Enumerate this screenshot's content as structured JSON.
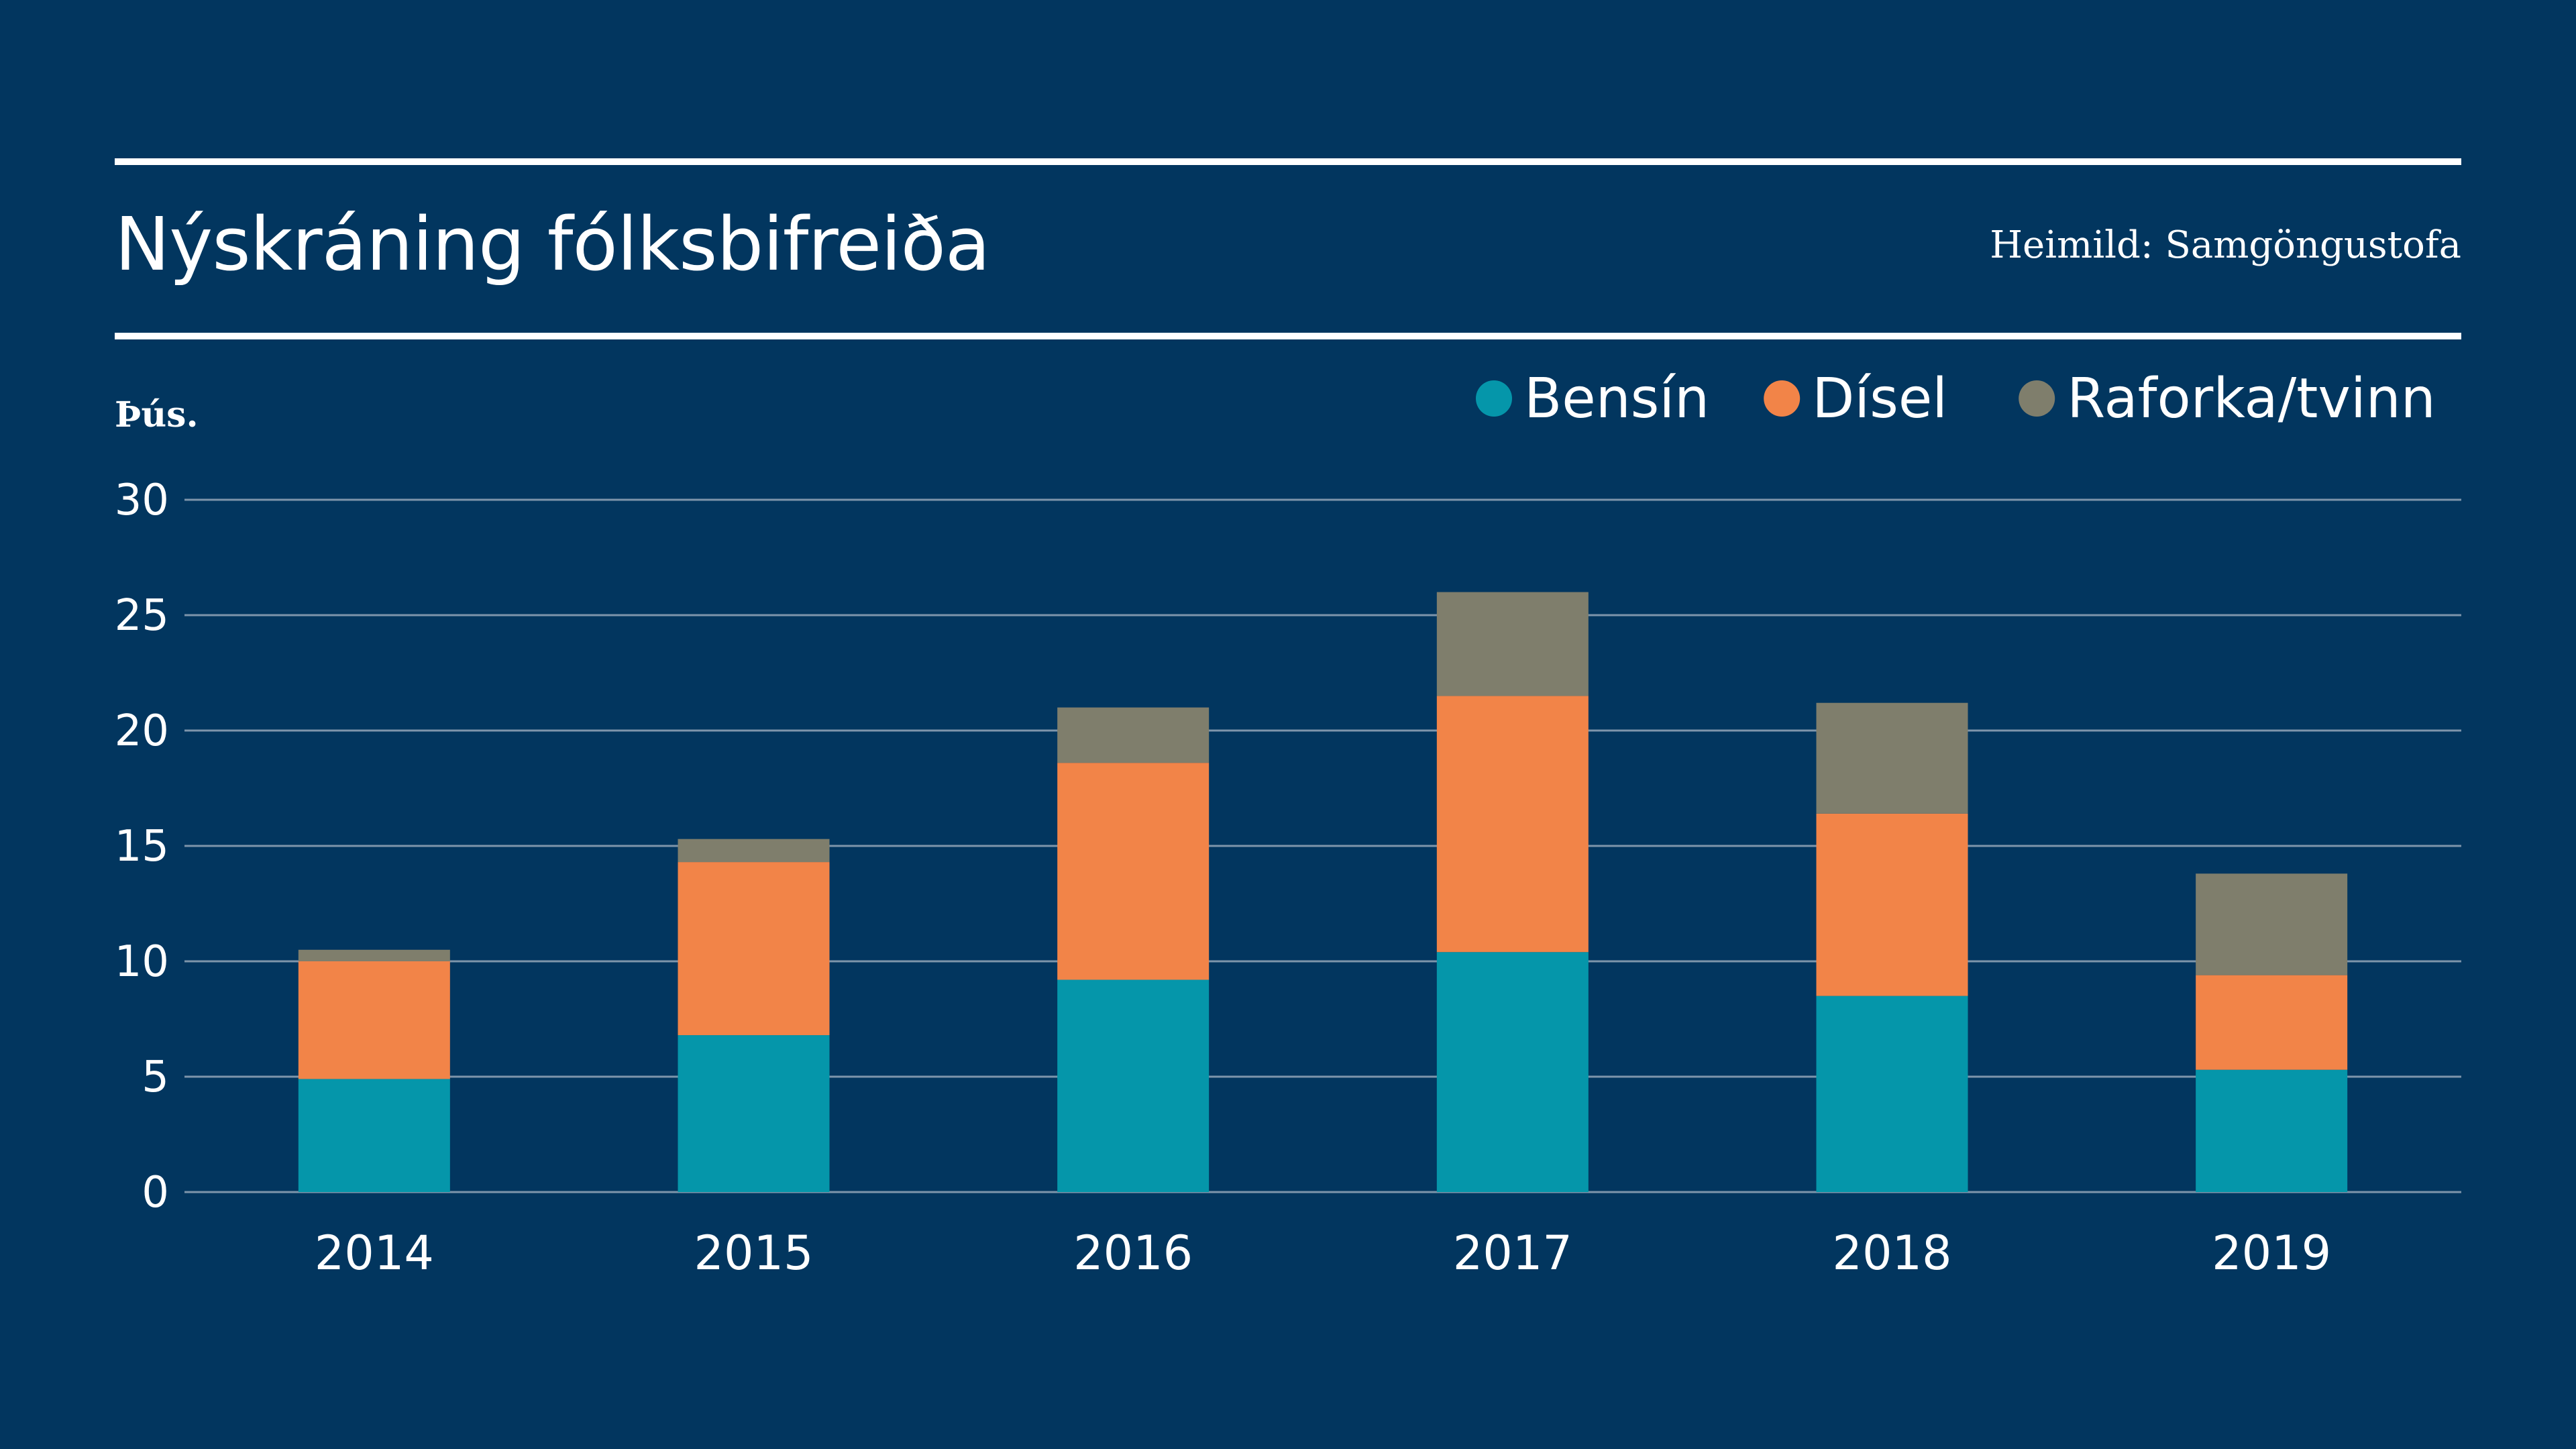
{
  "header": {
    "title": "Nýskráning fólksbifreiða",
    "source": "Heimild: Samgöngustofa"
  },
  "colors": {
    "background": "#02365F",
    "gridline": "#7E95AB",
    "text": "#FFFFFF",
    "bensin": "#0596AA",
    "disel": "#F28448",
    "raforka": "#7F7E6C"
  },
  "chart_data": {
    "type": "bar",
    "stacked": true,
    "title": "Nýskráning fólksbifreiða",
    "ylabel": "Þús.",
    "xlabel": "",
    "ylim": [
      0,
      30
    ],
    "yticks": [
      0,
      5,
      10,
      15,
      20,
      25,
      30
    ],
    "grid": true,
    "legend_position": "top-right",
    "categories": [
      "2014",
      "2015",
      "2016",
      "2017",
      "2018",
      "2019"
    ],
    "series": [
      {
        "name": "Bensín",
        "color": "#0596AA",
        "values": [
          4.9,
          6.8,
          9.2,
          10.4,
          8.5,
          5.3
        ]
      },
      {
        "name": "Dísel",
        "color": "#F28448",
        "values": [
          5.1,
          7.5,
          9.4,
          11.1,
          7.9,
          4.1
        ]
      },
      {
        "name": "Raforka/tvinn",
        "color": "#7F7E6C",
        "values": [
          0.5,
          1.0,
          2.4,
          4.5,
          4.8,
          4.4
        ]
      }
    ]
  }
}
